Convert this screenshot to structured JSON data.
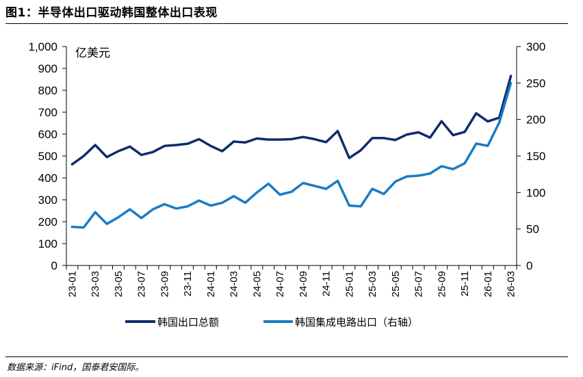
{
  "title": "图1：半导体出口驱动韩国整体出口表现",
  "source": "数据来源：iFind，国泰君安国际。",
  "colors": {
    "series1": "#0d2c6c",
    "series2": "#1a7bc4"
  },
  "chart_data": {
    "type": "line",
    "unit_label": "亿美元",
    "x": [
      "23-01",
      "23-02",
      "23-03",
      "23-04",
      "23-05",
      "23-06",
      "23-07",
      "23-08",
      "23-09",
      "23-10",
      "23-11",
      "23-12",
      "24-01",
      "24-02",
      "24-03",
      "24-04",
      "24-05",
      "24-06",
      "24-07",
      "24-08",
      "24-09",
      "24-10",
      "24-11",
      "24-12",
      "25-01",
      "25-02",
      "25-03",
      "25-04",
      "25-05",
      "25-06",
      "25-07",
      "25-08",
      "25-09",
      "25-10",
      "25-11",
      "25-12",
      "26-01",
      "26-02",
      "26-03"
    ],
    "x_tick_labels": [
      "23-01",
      "23-03",
      "23-05",
      "23-07",
      "23-09",
      "23-11",
      "24-01",
      "24-03",
      "24-05",
      "24-07",
      "24-09",
      "24-11",
      "25-01",
      "25-03",
      "25-05",
      "25-07",
      "25-09",
      "25-11",
      "26-01",
      "26-03"
    ],
    "y_left": {
      "min": 0,
      "max": 1000,
      "step": 100,
      "tick_labels": [
        "0",
        "100",
        "200",
        "300",
        "400",
        "500",
        "600",
        "700",
        "800",
        "900",
        "1,000"
      ]
    },
    "y_right": {
      "min": 0,
      "max": 300,
      "step": 50,
      "tick_labels": [
        "0",
        "50",
        "100",
        "150",
        "200",
        "250",
        "300"
      ]
    },
    "series": [
      {
        "name": "韩国出口总额",
        "axis": "left",
        "values": [
          462,
          500,
          550,
          495,
          522,
          543,
          505,
          518,
          546,
          550,
          556,
          577,
          546,
          522,
          566,
          562,
          580,
          575,
          575,
          577,
          587,
          577,
          563,
          614,
          491,
          526,
          582,
          582,
          573,
          598,
          608,
          584,
          659,
          595,
          610,
          695,
          658,
          675,
          866
        ]
      },
      {
        "name": "韩国集成电路出口（右轴）",
        "axis": "right",
        "values": [
          53,
          52,
          73,
          57,
          66,
          77,
          65,
          77,
          84,
          78,
          81,
          89,
          82,
          86,
          95,
          86,
          100,
          112,
          97,
          101,
          113,
          109,
          105,
          116,
          82,
          81,
          105,
          98,
          115,
          122,
          123,
          126,
          136,
          132,
          140,
          167,
          164,
          196,
          250
        ]
      }
    ],
    "legend_placement": "bottom",
    "grid": false
  }
}
